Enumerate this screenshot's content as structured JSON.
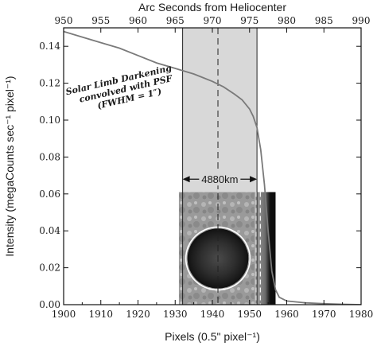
{
  "chart_data": {
    "type": "line",
    "title": "",
    "xlabel": "Pixels (0.5\" pixel⁻¹)",
    "ylabel": "Intensity (megaCounts sec⁻¹ pixel⁻¹)",
    "x2label": "Arc Seconds from Heliocenter",
    "xlim": [
      1900,
      1980
    ],
    "ylim": [
      0.0,
      0.15
    ],
    "x2lim": [
      950,
      990
    ],
    "xticks": [
      "1900",
      "1910",
      "1920",
      "1930",
      "1940",
      "1950",
      "1960",
      "1970",
      "1980"
    ],
    "x2ticks": [
      "950",
      "955",
      "960",
      "965",
      "970",
      "975",
      "980",
      "985",
      "990"
    ],
    "yticks": [
      "0.00",
      "0.02",
      "0.04",
      "0.06",
      "0.08",
      "0.10",
      "0.12",
      "0.14"
    ],
    "grid": false,
    "series": [
      {
        "name": "Solar Limb Darkening convolved with PSF (FWHM = 1″)",
        "color": "#7a7a7a",
        "x": [
          1900,
          1905,
          1910,
          1915,
          1920,
          1925,
          1930,
          1935,
          1940,
          1943,
          1946,
          1948,
          1950,
          1951,
          1952,
          1953,
          1954,
          1955,
          1956,
          1957,
          1958,
          1960,
          1965,
          1970,
          1975,
          1980
        ],
        "y": [
          0.148,
          0.145,
          0.142,
          0.139,
          0.135,
          0.131,
          0.128,
          0.125,
          0.121,
          0.118,
          0.114,
          0.111,
          0.106,
          0.102,
          0.096,
          0.084,
          0.065,
          0.04,
          0.018,
          0.008,
          0.004,
          0.002,
          0.001,
          0.0005,
          0.0002,
          0.0
        ]
      }
    ],
    "shaded_band": {
      "x_start": 1932,
      "x_end": 1952,
      "color": "#d8d8d8"
    },
    "center_line_x": 1941.5,
    "span_label": "4880km",
    "span_arrow_y": 0.068,
    "inset": {
      "x_start": 1931,
      "x_end": 1957,
      "y_bottom": 0.0,
      "y_top": 0.061,
      "circle_center_x": 1941.5,
      "circle_center_y": 0.025,
      "circle_radius_x": 8.2
    },
    "annotation": {
      "lines": [
        "Solar Limb Darkening",
        "convolved with PSF",
        "(FWHM = 1″)"
      ]
    }
  }
}
